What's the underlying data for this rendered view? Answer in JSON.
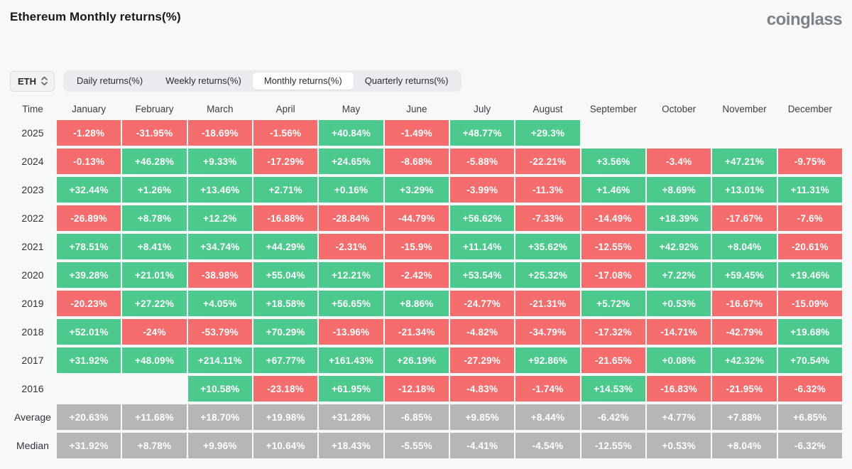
{
  "header": {
    "title": "Ethereum Monthly returns(%)",
    "logo": "coinglass"
  },
  "controls": {
    "symbol": "ETH",
    "tabs": [
      {
        "label": "Daily returns(%)",
        "active": false
      },
      {
        "label": "Weekly returns(%)",
        "active": false
      },
      {
        "label": "Monthly returns(%)",
        "active": true
      },
      {
        "label": "Quarterly returns(%)",
        "active": false
      }
    ]
  },
  "chart_data": {
    "type": "heatmap",
    "title": "Ethereum Monthly returns(%)",
    "columns": [
      "Time",
      "January",
      "February",
      "March",
      "April",
      "May",
      "June",
      "July",
      "August",
      "September",
      "October",
      "November",
      "December"
    ],
    "colors": {
      "positive": "#4cc98c",
      "negative": "#f56c6c",
      "neutral": "#b6b6b6"
    },
    "rows": [
      {
        "label": "2025",
        "kind": "year",
        "values": [
          "-1.28%",
          "-31.95%",
          "-18.69%",
          "-1.56%",
          "+40.84%",
          "-1.49%",
          "+48.77%",
          "+29.3%",
          "",
          "",
          "",
          ""
        ]
      },
      {
        "label": "2024",
        "kind": "year",
        "values": [
          "-0.13%",
          "+46.28%",
          "+9.33%",
          "-17.29%",
          "+24.65%",
          "-8.68%",
          "-5.88%",
          "-22.21%",
          "+3.56%",
          "-3.4%",
          "+47.21%",
          "-9.75%"
        ]
      },
      {
        "label": "2023",
        "kind": "year",
        "values": [
          "+32.44%",
          "+1.26%",
          "+13.46%",
          "+2.71%",
          "+0.16%",
          "+3.29%",
          "-3.99%",
          "-11.3%",
          "+1.46%",
          "+8.69%",
          "+13.01%",
          "+11.31%"
        ]
      },
      {
        "label": "2022",
        "kind": "year",
        "values": [
          "-26.89%",
          "+8.78%",
          "+12.2%",
          "-16.88%",
          "-28.84%",
          "-44.79%",
          "+56.62%",
          "-7.33%",
          "-14.49%",
          "+18.39%",
          "-17.67%",
          "-7.6%"
        ]
      },
      {
        "label": "2021",
        "kind": "year",
        "values": [
          "+78.51%",
          "+8.41%",
          "+34.74%",
          "+44.29%",
          "-2.31%",
          "-15.9%",
          "+11.14%",
          "+35.62%",
          "-12.55%",
          "+42.92%",
          "+8.04%",
          "-20.61%"
        ]
      },
      {
        "label": "2020",
        "kind": "year",
        "values": [
          "+39.28%",
          "+21.01%",
          "-38.98%",
          "+55.04%",
          "+12.21%",
          "-2.42%",
          "+53.54%",
          "+25.32%",
          "-17.08%",
          "+7.22%",
          "+59.45%",
          "+19.46%"
        ]
      },
      {
        "label": "2019",
        "kind": "year",
        "values": [
          "-20.23%",
          "+27.22%",
          "+4.05%",
          "+18.58%",
          "+56.65%",
          "+8.86%",
          "-24.77%",
          "-21.31%",
          "+5.72%",
          "+0.53%",
          "-16.67%",
          "-15.09%"
        ]
      },
      {
        "label": "2018",
        "kind": "year",
        "values": [
          "+52.01%",
          "-24%",
          "-53.79%",
          "+70.29%",
          "-13.96%",
          "-21.34%",
          "-4.82%",
          "-34.79%",
          "-17.32%",
          "-14.71%",
          "-42.79%",
          "+19.68%"
        ]
      },
      {
        "label": "2017",
        "kind": "year",
        "values": [
          "+31.92%",
          "+48.09%",
          "+214.11%",
          "+67.77%",
          "+161.43%",
          "+26.19%",
          "-27.29%",
          "+92.86%",
          "-21.65%",
          "+0.08%",
          "+42.32%",
          "+70.54%"
        ]
      },
      {
        "label": "2016",
        "kind": "year",
        "values": [
          "",
          "",
          "+10.58%",
          "-23.18%",
          "+61.95%",
          "-12.18%",
          "-4.83%",
          "-1.74%",
          "+14.53%",
          "-16.83%",
          "-21.95%",
          "-6.32%"
        ]
      },
      {
        "label": "Average",
        "kind": "stat",
        "values": [
          "+20.63%",
          "+11.68%",
          "+18.70%",
          "+19.98%",
          "+31.28%",
          "-6.85%",
          "+9.85%",
          "+8.44%",
          "-6.42%",
          "+4.77%",
          "+7.88%",
          "+6.85%"
        ]
      },
      {
        "label": "Median",
        "kind": "stat",
        "values": [
          "+31.92%",
          "+8.78%",
          "+9.96%",
          "+10.64%",
          "+18.43%",
          "-5.55%",
          "-4.41%",
          "-4.54%",
          "-12.55%",
          "+0.53%",
          "+8.04%",
          "-6.32%"
        ]
      }
    ]
  }
}
